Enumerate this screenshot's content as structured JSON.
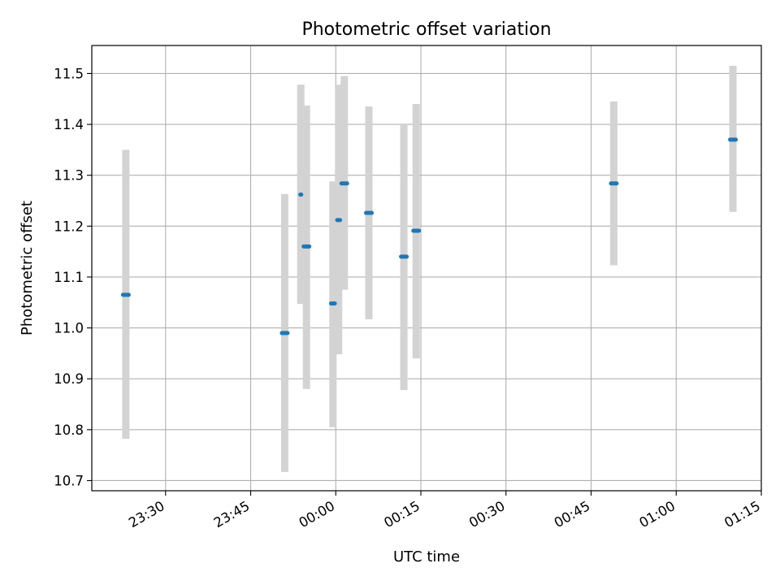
{
  "chart_data": {
    "type": "scatter",
    "title": "Photometric offset variation",
    "xlabel": "UTC time",
    "ylabel": "Photometric offset",
    "grid": true,
    "legend": "none",
    "xlim": [
      "23:17",
      "01:15"
    ],
    "ylim": [
      10.68,
      11.555
    ],
    "x_ticks": [
      "23:30",
      "23:45",
      "00:00",
      "00:15",
      "00:30",
      "00:45",
      "01:00",
      "01:15"
    ],
    "y_ticks": [
      "10.7",
      "10.8",
      "10.9",
      "11.0",
      "11.1",
      "11.2",
      "11.3",
      "11.4",
      "11.5"
    ],
    "colors": {
      "marker": "#1f77b4",
      "errorbar": "#d3d3d3",
      "grid": "#b0b0b0"
    },
    "points": [
      {
        "t_start": "23:22:30",
        "t_end": "23:23:30",
        "y": 11.065,
        "err_low": 10.782,
        "err_high": 11.35
      },
      {
        "t_start": "23:50:30",
        "t_end": "23:51:30",
        "y": 10.99,
        "err_low": 10.717,
        "err_high": 11.263
      },
      {
        "t_start": "23:53:45",
        "t_end": "23:53:55",
        "y": 11.262,
        "err_low": 11.047,
        "err_high": 11.478
      },
      {
        "t_start": "23:54:20",
        "t_end": "23:55:20",
        "y": 11.16,
        "err_low": 10.88,
        "err_high": 11.437
      },
      {
        "t_start": "23:59:10",
        "t_end": "23:59:50",
        "y": 11.048,
        "err_low": 10.805,
        "err_high": 11.288
      },
      {
        "t_start": "00:00:15",
        "t_end": "00:00:45",
        "y": 11.212,
        "err_low": 10.948,
        "err_high": 11.478
      },
      {
        "t_start": "00:01:00",
        "t_end": "00:02:00",
        "y": 11.284,
        "err_low": 11.075,
        "err_high": 11.495
      },
      {
        "t_start": "00:05:20",
        "t_end": "00:06:20",
        "y": 11.226,
        "err_low": 11.017,
        "err_high": 11.435
      },
      {
        "t_start": "00:11:30",
        "t_end": "00:12:30",
        "y": 11.14,
        "err_low": 10.878,
        "err_high": 11.4
      },
      {
        "t_start": "00:13:40",
        "t_end": "00:14:40",
        "y": 11.191,
        "err_low": 10.94,
        "err_high": 11.44
      },
      {
        "t_start": "00:48:30",
        "t_end": "00:49:30",
        "y": 11.284,
        "err_low": 11.123,
        "err_high": 11.445
      },
      {
        "t_start": "01:09:30",
        "t_end": "01:10:30",
        "y": 11.37,
        "err_low": 11.228,
        "err_high": 11.515
      }
    ]
  }
}
